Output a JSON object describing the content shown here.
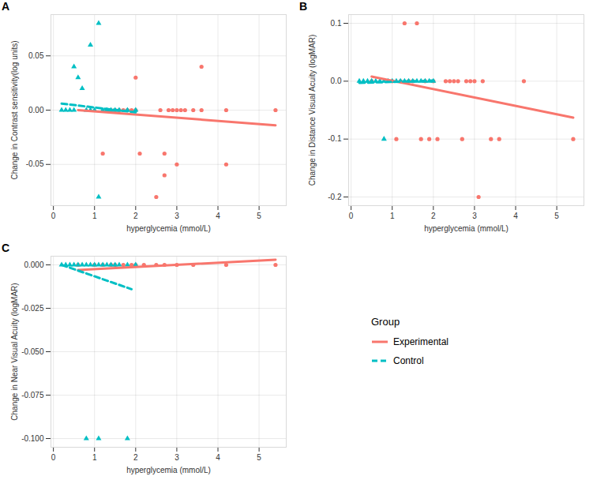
{
  "chart_data": [
    {
      "type": "scatter",
      "title": "A",
      "x_label": "hyperglycemia (mmol/L)",
      "y_label": "Change in Contrast sensitivity(log units)",
      "xlim": [
        -0.06,
        5.66
      ],
      "xticks": [
        0,
        1,
        2,
        3,
        4,
        5
      ],
      "ylim": [
        -0.088,
        0.088
      ],
      "yticks": [
        -0.05,
        {
          "value": 0,
          "label": "0.00"
        },
        0.05
      ],
      "grid": true,
      "series": [
        {
          "name": "Experimental",
          "color": "#F8766D",
          "marker": "circle",
          "line_style": "solid",
          "x": [
            1.2,
            1.3,
            1.4,
            1.5,
            1.6,
            1.7,
            1.8,
            1.9,
            2.0,
            2.0,
            2.1,
            2.5,
            2.6,
            2.7,
            2.7,
            2.8,
            2.9,
            3.0,
            3.0,
            3.1,
            3.2,
            3.4,
            3.6,
            3.6,
            4.2,
            4.2,
            5.4
          ],
          "values": [
            -0.04,
            0,
            0,
            0,
            0,
            0,
            0,
            0,
            0,
            0.03,
            -0.04,
            -0.08,
            0,
            -0.04,
            -0.06,
            0,
            0,
            0,
            -0.05,
            0,
            0,
            0,
            0,
            0.04,
            0,
            -0.05,
            0
          ],
          "fit": {
            "x": [
              0.6,
              5.4
            ],
            "values": [
              0,
              -0.014
            ]
          }
        },
        {
          "name": "Control",
          "color": "#00BFC4",
          "marker": "triangle",
          "line_style": "dashed",
          "x": [
            0.2,
            0.3,
            0.4,
            0.5,
            0.5,
            0.6,
            0.7,
            0.8,
            0.9,
            0.9,
            1.0,
            1.1,
            1.1,
            1.2,
            1.3,
            1.4,
            1.5,
            1.6,
            1.8,
            2.0
          ],
          "values": [
            0,
            0,
            0,
            0,
            0.04,
            0.03,
            0.02,
            0,
            0.06,
            0,
            0,
            0.08,
            -0.08,
            0,
            0,
            0,
            0,
            0,
            0,
            0
          ],
          "fit": {
            "x": [
              0.2,
              2.0
            ],
            "values": [
              0.006,
              -0.002
            ]
          }
        }
      ]
    },
    {
      "type": "scatter",
      "title": "B",
      "x_label": "hyperglycemia (mmol/L)",
      "y_label": "Change in Distance Visual Acuity (logMAR)",
      "xlim": [
        -0.06,
        5.66
      ],
      "xticks": [
        0,
        1,
        2,
        3,
        4,
        5
      ],
      "ylim": [
        -0.215,
        0.115
      ],
      "yticks": [
        -0.2,
        -0.1,
        {
          "value": 0,
          "label": "0.0"
        },
        0.1
      ],
      "grid": true,
      "series": [
        {
          "name": "Experimental",
          "color": "#F8766D",
          "marker": "circle",
          "line_style": "solid",
          "x": [
            0.5,
            1.0,
            1.1,
            1.2,
            1.3,
            1.4,
            1.5,
            1.6,
            1.7,
            1.8,
            1.9,
            2.0,
            2.1,
            2.3,
            2.4,
            2.5,
            2.6,
            2.7,
            2.8,
            2.9,
            3.0,
            3.1,
            3.2,
            3.4,
            3.6,
            4.2,
            5.4
          ],
          "values": [
            0,
            0,
            -0.1,
            0,
            0.1,
            0,
            0,
            0.1,
            -0.1,
            0,
            -0.1,
            0,
            -0.1,
            0,
            0,
            0,
            0,
            -0.1,
            0,
            0,
            0,
            -0.2,
            0,
            -0.1,
            -0.1,
            0,
            -0.1
          ],
          "fit": {
            "x": [
              0.5,
              5.4
            ],
            "values": [
              0.008,
              -0.063
            ]
          }
        },
        {
          "name": "Control",
          "color": "#00BFC4",
          "marker": "triangle",
          "line_style": "dashed",
          "x": [
            0.2,
            0.3,
            0.4,
            0.5,
            0.6,
            0.7,
            0.8,
            0.8,
            0.9,
            1.0,
            1.1,
            1.2,
            1.3,
            1.4,
            1.5,
            1.6,
            1.7,
            1.8,
            1.9,
            2.0
          ],
          "values": [
            0,
            0,
            0,
            0,
            0,
            0,
            0,
            -0.1,
            0,
            0,
            0,
            0,
            0,
            0,
            0,
            0,
            0,
            0,
            0,
            0
          ],
          "fit": {
            "x": [
              0.2,
              2.0
            ],
            "values": [
              -0.003,
              0.001
            ]
          }
        }
      ]
    },
    {
      "type": "scatter",
      "title": "C",
      "x_label": "hyperglycemia (mmol/L)",
      "y_label": "Change in Near Visual Acuity (logMAR)",
      "xlim": [
        -0.06,
        5.66
      ],
      "xticks": [
        0,
        1,
        2,
        3,
        4,
        5
      ],
      "ylim": [
        -0.105,
        0.005
      ],
      "yticks": [
        {
          "value": -0.1,
          "label": "-0.100"
        },
        {
          "value": -0.075,
          "label": "-0.075"
        },
        {
          "value": -0.05,
          "label": "-0.050"
        },
        -0.025,
        {
          "value": 0,
          "label": "0.000"
        }
      ],
      "grid": true,
      "legend": "right",
      "legend_title": "Group",
      "series": [
        {
          "name": "Experimental",
          "color": "#F8766D",
          "marker": "circle",
          "line_style": "solid",
          "x": [
            0.6,
            1.0,
            1.2,
            1.4,
            1.5,
            1.7,
            1.9,
            2.0,
            2.2,
            2.5,
            2.7,
            3.0,
            3.4,
            4.2,
            5.4
          ],
          "values": [
            0,
            0,
            0,
            0,
            0,
            0,
            0,
            0,
            0,
            0,
            0,
            0,
            0,
            0,
            0
          ],
          "fit": {
            "x": [
              0.6,
              5.4
            ],
            "values": [
              -0.003,
              0.003
            ]
          }
        },
        {
          "name": "Control",
          "color": "#00BFC4",
          "marker": "triangle",
          "line_style": "dashed",
          "x": [
            0.2,
            0.3,
            0.4,
            0.5,
            0.6,
            0.7,
            0.8,
            0.8,
            0.9,
            1.0,
            1.1,
            1.1,
            1.2,
            1.3,
            1.4,
            1.5,
            1.6,
            1.8,
            1.8,
            2.0
          ],
          "values": [
            0,
            0,
            0,
            0,
            0,
            0,
            0,
            -0.1,
            0,
            0,
            0,
            -0.1,
            0,
            0,
            0,
            0,
            0,
            0,
            -0.1,
            0
          ],
          "fit": {
            "x": [
              0.2,
              1.9
            ],
            "values": [
              0,
              -0.014
            ]
          }
        }
      ]
    }
  ]
}
